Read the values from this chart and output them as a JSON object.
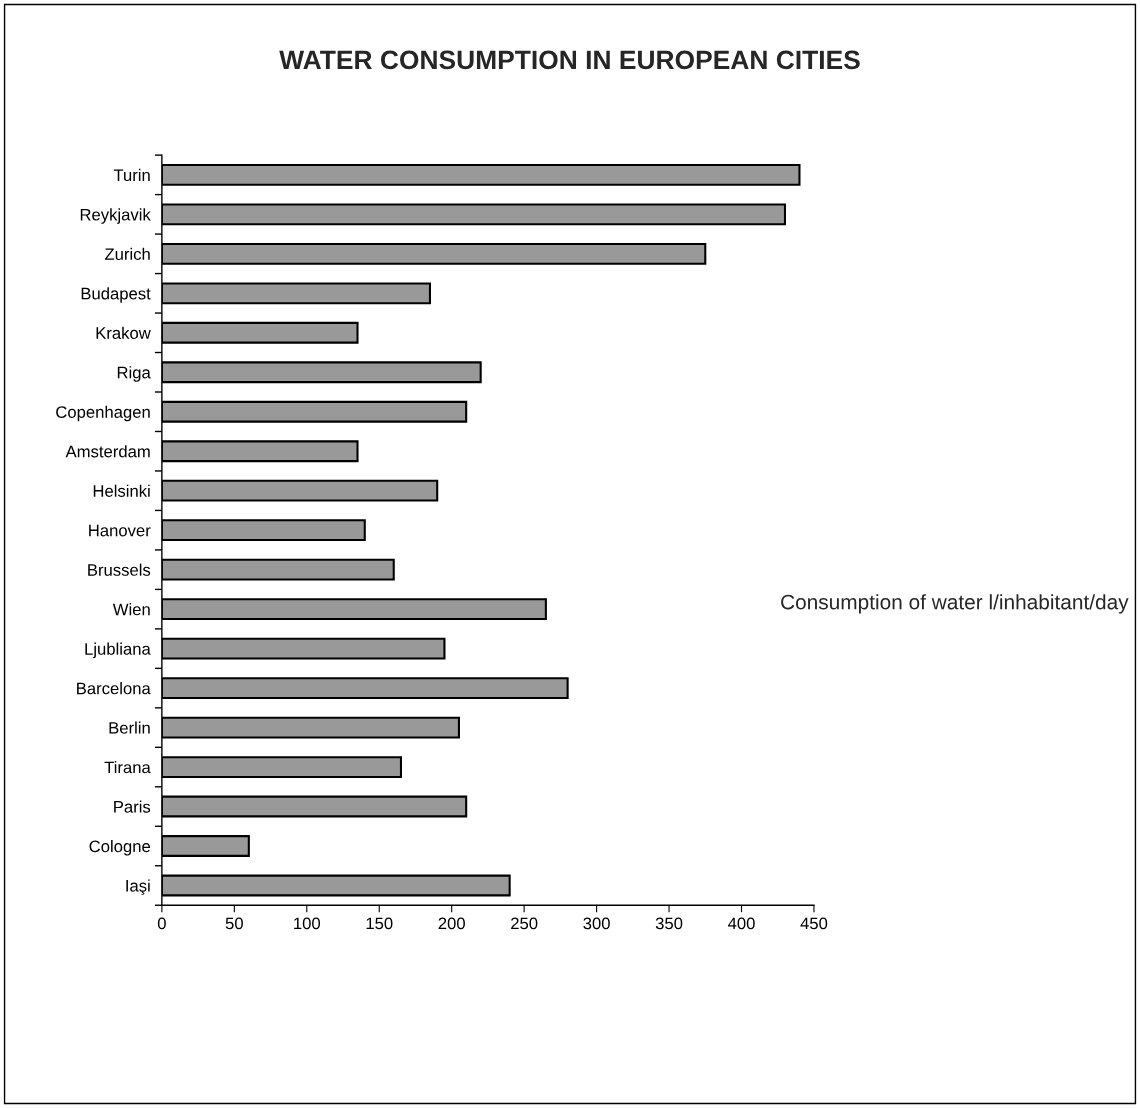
{
  "chart_data": {
    "type": "bar",
    "orientation": "horizontal",
    "title": "WATER CONSUMPTION IN EUROPEAN CITIES",
    "categories": [
      "Turin",
      "Reykjavik",
      "Zurich",
      "Budapest",
      "Krakow",
      "Riga",
      "Copenhagen",
      "Amsterdam",
      "Helsinki",
      "Hanover",
      "Brussels",
      "Wien",
      "Ljubliana",
      "Barcelona",
      "Berlin",
      "Tirana",
      "Paris",
      "Cologne",
      "Iaşi"
    ],
    "values": [
      440,
      430,
      375,
      185,
      135,
      220,
      210,
      135,
      190,
      140,
      160,
      265,
      195,
      280,
      205,
      165,
      210,
      60,
      240
    ],
    "color": "#999999",
    "xlim": [
      0,
      450
    ],
    "xticks": [
      0,
      50,
      100,
      150,
      200,
      250,
      300,
      350,
      400,
      450
    ],
    "annotations": [
      "Consumption of water l/inhabitant/day"
    ],
    "grid": false
  }
}
